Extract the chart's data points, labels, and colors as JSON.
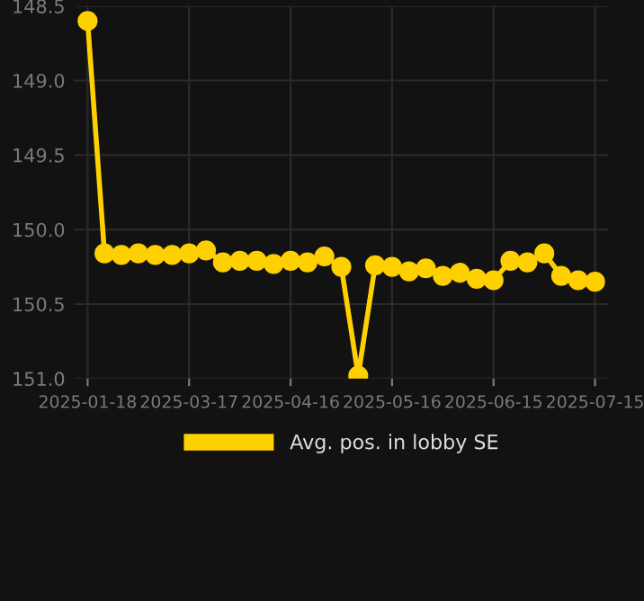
{
  "chart_data": {
    "type": "line",
    "categories": [
      "2025-01-18",
      null,
      null,
      null,
      null,
      null,
      "2025-03-17",
      null,
      null,
      null,
      null,
      null,
      "2025-04-16",
      null,
      null,
      null,
      null,
      null,
      "2025-05-16",
      null,
      null,
      null,
      null,
      null,
      "2025-06-15",
      null,
      null,
      null,
      null,
      null,
      "2025-07-15"
    ],
    "series": [
      {
        "name": "Avg. pos. in lobby SE",
        "color": "#ffd000",
        "values": [
          148.6,
          150.16,
          150.17,
          150.16,
          150.17,
          150.17,
          150.16,
          150.14,
          150.22,
          150.21,
          150.21,
          150.23,
          150.21,
          150.22,
          150.18,
          150.25,
          150.98,
          150.24,
          150.25,
          150.28,
          150.26,
          150.31,
          150.29,
          150.33,
          150.34,
          150.21,
          150.22,
          150.16,
          150.31,
          150.34,
          150.35
        ]
      }
    ],
    "ylim": [
      151.0,
      148.5
    ],
    "yticks": [
      {
        "value": 148.5,
        "label": "148.5"
      },
      {
        "value": 149,
        "label": "149.0"
      },
      {
        "value": 149.5,
        "label": "149.5"
      },
      {
        "value": 150,
        "label": "150.0"
      },
      {
        "value": 150.5,
        "label": "150.5"
      },
      {
        "value": 151,
        "label": "151.0"
      }
    ],
    "grid": true,
    "legend": "bottom",
    "marker": "circle",
    "line_style": "solid"
  }
}
